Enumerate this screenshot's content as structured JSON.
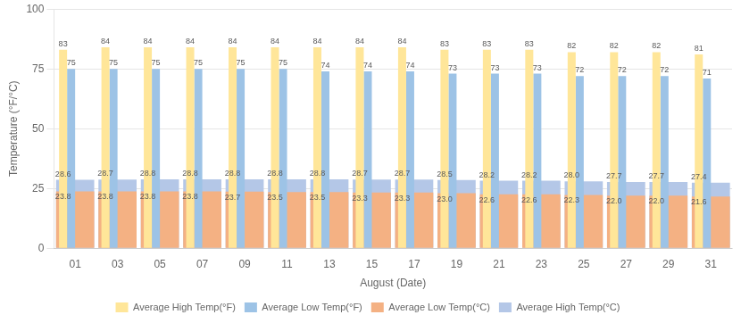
{
  "chart_data": {
    "type": "bar",
    "xlabel": "August (Date)",
    "ylabel": "Temperature (°F/°C)",
    "categories": [
      "01",
      "03",
      "05",
      "07",
      "09",
      "11",
      "13",
      "15",
      "17",
      "19",
      "21",
      "23",
      "25",
      "27",
      "29",
      "31"
    ],
    "series": [
      {
        "name": "Average High Temp(°F)",
        "color": "#FFE699",
        "values": [
          83,
          84,
          84,
          84,
          84,
          84,
          84,
          84,
          84,
          83,
          83,
          83,
          82,
          82,
          82,
          81
        ]
      },
      {
        "name": "Average Low Temp(°F)",
        "color": "#9DC3E6",
        "values": [
          75,
          75,
          75,
          75,
          75,
          75,
          74,
          74,
          74,
          73,
          73,
          73,
          72,
          72,
          72,
          71
        ]
      },
      {
        "name": "Average Low Temp(°C)",
        "color": "#F4B183",
        "values": [
          23.8,
          23.8,
          23.8,
          23.8,
          23.7,
          23.5,
          23.5,
          23.3,
          23.3,
          23.0,
          22.6,
          22.6,
          22.3,
          22.0,
          22.0,
          21.6
        ],
        "value_labels": [
          "23.8",
          "23.8",
          "23.8",
          "23.8",
          "23.7",
          "23.5",
          "23.5",
          "23.3",
          "23.3",
          "23.0",
          "22.6",
          "22.6",
          "22.3",
          "22.0",
          "22.0",
          "21.6"
        ]
      },
      {
        "name": "Average High Temp(°C)",
        "color": "#B4C7E7",
        "values": [
          28.6,
          28.7,
          28.8,
          28.8,
          28.8,
          28.8,
          28.8,
          28.7,
          28.7,
          28.5,
          28.2,
          28.2,
          28.0,
          27.7,
          27.7,
          27.4
        ],
        "value_labels": [
          "28.6",
          "28.7",
          "28.8",
          "28.8",
          "28.8",
          "28.8",
          "28.8",
          "28.7",
          "28.7",
          "28.5",
          "28.2",
          "28.2",
          "28.0",
          "27.7",
          "27.7",
          "27.4"
        ]
      }
    ],
    "ylim": [
      0,
      100
    ],
    "yticks": [
      0,
      25,
      50,
      75,
      100
    ],
    "grid": true,
    "legend": "bottom",
    "data_labels": true
  }
}
